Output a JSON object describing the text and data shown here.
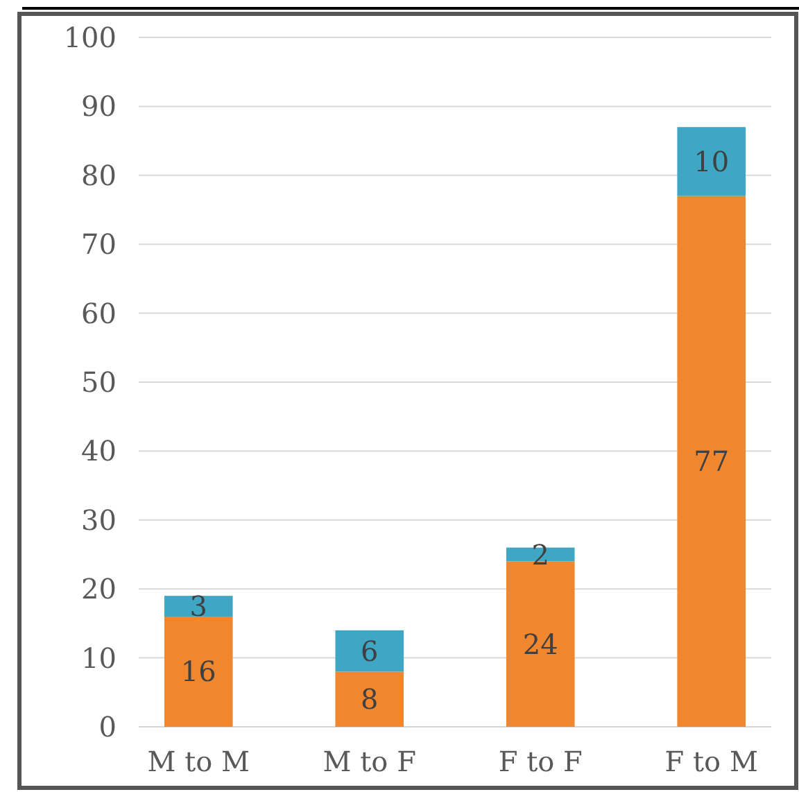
{
  "chart_data": {
    "type": "bar",
    "stacked": true,
    "categories": [
      "M to M",
      "M to F",
      "F to F",
      "F to M"
    ],
    "series": [
      {
        "color": "#f0862e",
        "values": [
          16,
          8,
          24,
          77
        ]
      },
      {
        "color": "#3fa6c4",
        "values": [
          3,
          6,
          2,
          10
        ]
      }
    ],
    "ylim": [
      0,
      100
    ],
    "yticks": [
      0,
      10,
      20,
      30,
      40,
      50,
      60,
      70,
      80,
      90,
      100
    ],
    "grid": "y",
    "data_labels": true
  }
}
